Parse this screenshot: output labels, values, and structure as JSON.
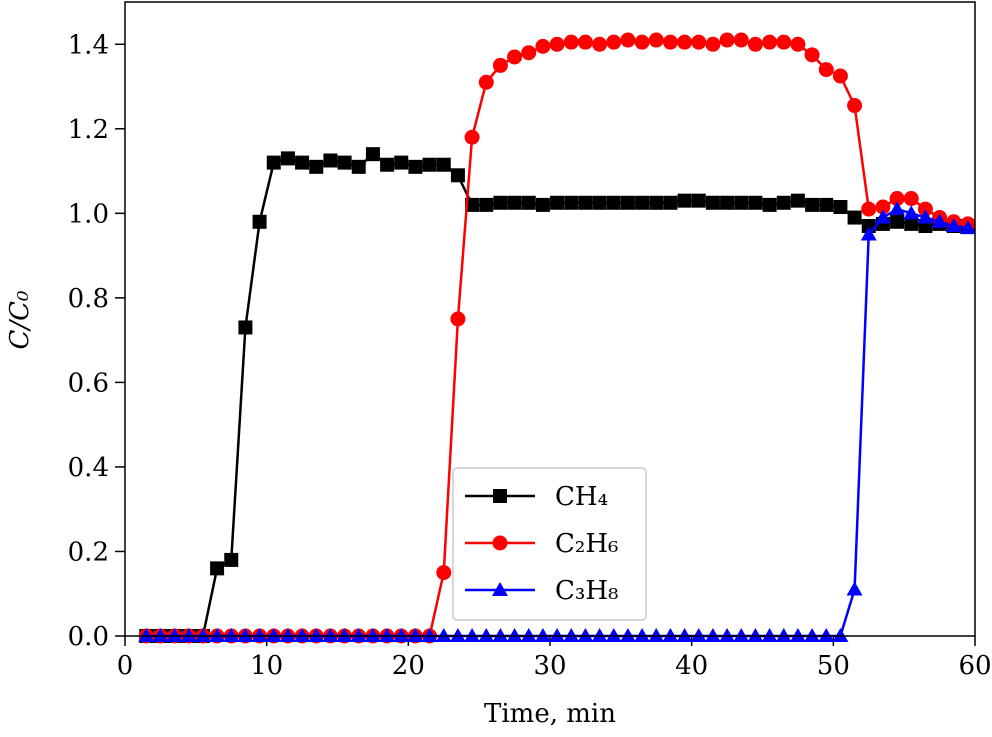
{
  "chart_data": {
    "type": "line",
    "xlabel": "Time, min",
    "ylabel": "C/C₀",
    "x": [
      1.5,
      2.5,
      3.5,
      4.5,
      5.5,
      6.5,
      7.5,
      8.5,
      9.5,
      10.5,
      11.5,
      12.5,
      13.5,
      14.5,
      15.5,
      16.5,
      17.5,
      18.5,
      19.5,
      20.5,
      21.5,
      22.5,
      23.5,
      24.5,
      25.5,
      26.5,
      27.5,
      28.5,
      29.5,
      30.5,
      31.5,
      32.5,
      33.5,
      34.5,
      35.5,
      36.5,
      37.5,
      38.5,
      39.5,
      40.5,
      41.5,
      42.5,
      43.5,
      44.5,
      45.5,
      46.5,
      47.5,
      48.5,
      49.5,
      50.5,
      51.5,
      52.5,
      53.5,
      54.5,
      55.5,
      56.5,
      57.5,
      58.5,
      59.5
    ],
    "series": [
      {
        "name": "CH₄",
        "color": "#000000",
        "marker": "square",
        "values": [
          0,
          0,
          0,
          0,
          0,
          0.16,
          0.18,
          0.73,
          0.98,
          1.12,
          1.13,
          1.12,
          1.11,
          1.125,
          1.12,
          1.11,
          1.14,
          1.115,
          1.12,
          1.11,
          1.115,
          1.115,
          1.09,
          1.02,
          1.02,
          1.025,
          1.025,
          1.025,
          1.02,
          1.025,
          1.025,
          1.025,
          1.025,
          1.025,
          1.025,
          1.025,
          1.025,
          1.025,
          1.03,
          1.03,
          1.025,
          1.025,
          1.025,
          1.025,
          1.02,
          1.025,
          1.03,
          1.02,
          1.02,
          1.015,
          0.99,
          0.97,
          0.975,
          0.98,
          0.975,
          0.97,
          0.975,
          0.97,
          0.97
        ]
      },
      {
        "name": "C₂H₆",
        "color": "#ff0000",
        "marker": "circle",
        "values": [
          0,
          0,
          0,
          0,
          0,
          0,
          0,
          0,
          0,
          0,
          0,
          0,
          0,
          0,
          0,
          0,
          0,
          0,
          0,
          0,
          0,
          0.15,
          0.75,
          1.18,
          1.31,
          1.35,
          1.37,
          1.38,
          1.395,
          1.4,
          1.405,
          1.405,
          1.4,
          1.405,
          1.41,
          1.405,
          1.41,
          1.405,
          1.405,
          1.405,
          1.4,
          1.41,
          1.41,
          1.4,
          1.405,
          1.405,
          1.4,
          1.375,
          1.34,
          1.325,
          1.255,
          1.01,
          1.015,
          1.035,
          1.035,
          1.01,
          0.99,
          0.98,
          0.975
        ]
      },
      {
        "name": "C₃H₈",
        "color": "#0000ff",
        "marker": "triangle",
        "values": [
          0,
          0,
          0,
          0,
          0,
          0,
          0,
          0,
          0,
          0,
          0,
          0,
          0,
          0,
          0,
          0,
          0,
          0,
          0,
          0,
          0,
          0,
          0,
          0,
          0,
          0,
          0,
          0,
          0,
          0,
          0,
          0,
          0,
          0,
          0,
          0,
          0,
          0,
          0,
          0,
          0,
          0,
          0,
          0,
          0,
          0,
          0,
          0,
          0,
          0,
          0.11,
          0.95,
          0.99,
          1.01,
          1.0,
          0.99,
          0.98,
          0.97,
          0.965
        ]
      }
    ],
    "xlim": [
      0,
      60
    ],
    "xticks": [
      0,
      10,
      20,
      30,
      40,
      50,
      60
    ],
    "ylim": [
      0,
      1.5
    ],
    "yticks": [
      {
        "value": 0,
        "label": "0.0"
      },
      {
        "value": 0.2,
        "label": "0.2"
      },
      {
        "value": 0.4,
        "label": "0.4"
      },
      {
        "value": 0.6,
        "label": "0.6"
      },
      {
        "value": 0.8,
        "label": "0.8"
      },
      {
        "value": 1.0,
        "label": "1.0"
      },
      {
        "value": 1.2,
        "label": "1.2"
      },
      {
        "value": 1.4,
        "label": "1.4"
      }
    ],
    "legend": "lower center"
  }
}
